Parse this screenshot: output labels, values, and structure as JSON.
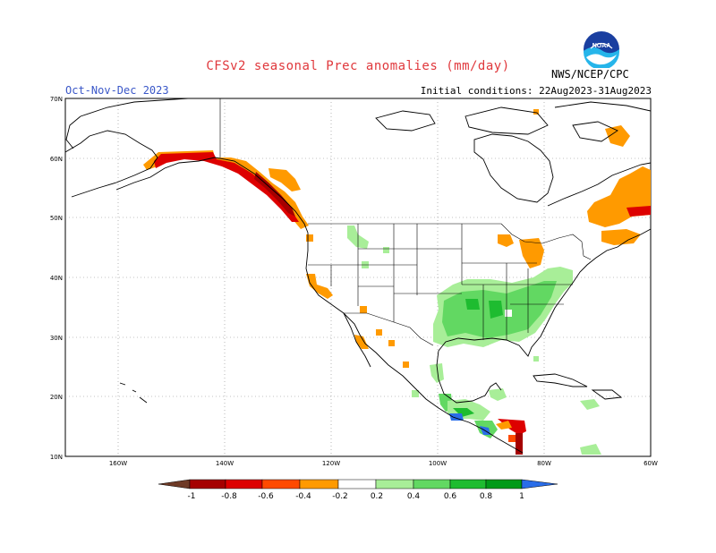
{
  "title": "CFSv2 seasonal Prec anomalies (mm/day)",
  "period": "Oct-Nov-Dec 2023",
  "initial_conditions": "Initial conditions: 22Aug2023-31Aug2023",
  "agency": "NWS/NCEP/CPC",
  "logo_text": "NOAA",
  "map": {
    "lat_labels": [
      "70N",
      "60N",
      "50N",
      "40N",
      "30N",
      "20N",
      "10N"
    ],
    "lon_labels": [
      "160W",
      "140W",
      "120W",
      "100W",
      "80W",
      "60W"
    ]
  },
  "legend": {
    "tick_labels": [
      "-1",
      "-0.8",
      "-0.6",
      "-0.4",
      "-0.2",
      "0.2",
      "0.4",
      "0.6",
      "0.8",
      "1"
    ],
    "colors": [
      "#6e3a26",
      "#a50000",
      "#dd0000",
      "#ff4a00",
      "#ff9a00",
      "#ffffff",
      "#a8ee98",
      "#62d862",
      "#1ebc30",
      "#009a18",
      "#2a6de8"
    ]
  },
  "colors": {
    "title": "#e0383c",
    "period": "#3a57c8",
    "dry_strong": "#a50000",
    "dry": "#dd0000",
    "dry_moderate": "#ff9a00",
    "wet_light": "#a8ee98",
    "wet": "#62d862",
    "wet_strong": "#1ebc30",
    "wet_very_strong": "#2a6de8"
  }
}
